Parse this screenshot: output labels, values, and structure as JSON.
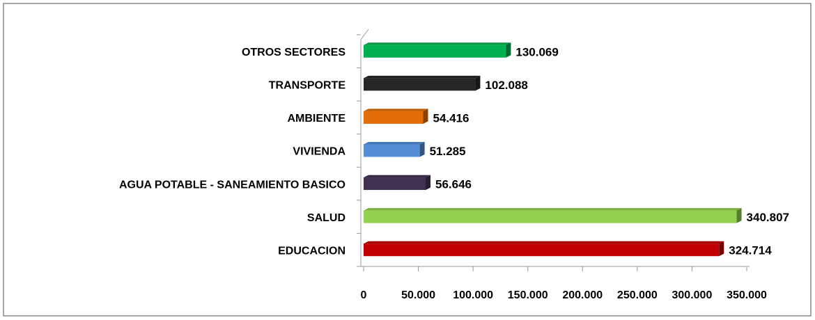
{
  "chart_data": {
    "type": "bar",
    "orientation": "horizontal",
    "categories": [
      "EDUCACION",
      "SALUD",
      "AGUA POTABLE - SANEAMIENTO BASICO",
      "VIVIENDA",
      "AMBIENTE",
      "TRANSPORTE",
      "OTROS SECTORES"
    ],
    "values": [
      324714,
      340807,
      56646,
      51285,
      54416,
      102088,
      130069
    ],
    "value_labels": [
      "324.714",
      "340.807",
      "56.646",
      "51.285",
      "54.416",
      "102.088",
      "130.069"
    ],
    "colors": [
      "#c00000",
      "#92d050",
      "#403152",
      "#558ed5",
      "#e46c0a",
      "#262626",
      "#00b050"
    ],
    "xlim": [
      0,
      350000
    ],
    "xticks": [
      0,
      {
        "value": 50000,
        "label": "50.000"
      },
      {
        "value": 100000,
        "label": "100.000"
      },
      {
        "value": 150000,
        "label": "150.000"
      },
      {
        "value": 200000,
        "label": "200.000"
      },
      {
        "value": 250000,
        "label": "250.000"
      },
      {
        "value": 300000,
        "label": "300.000"
      },
      {
        "value": 350000,
        "label": "350.000"
      }
    ]
  }
}
